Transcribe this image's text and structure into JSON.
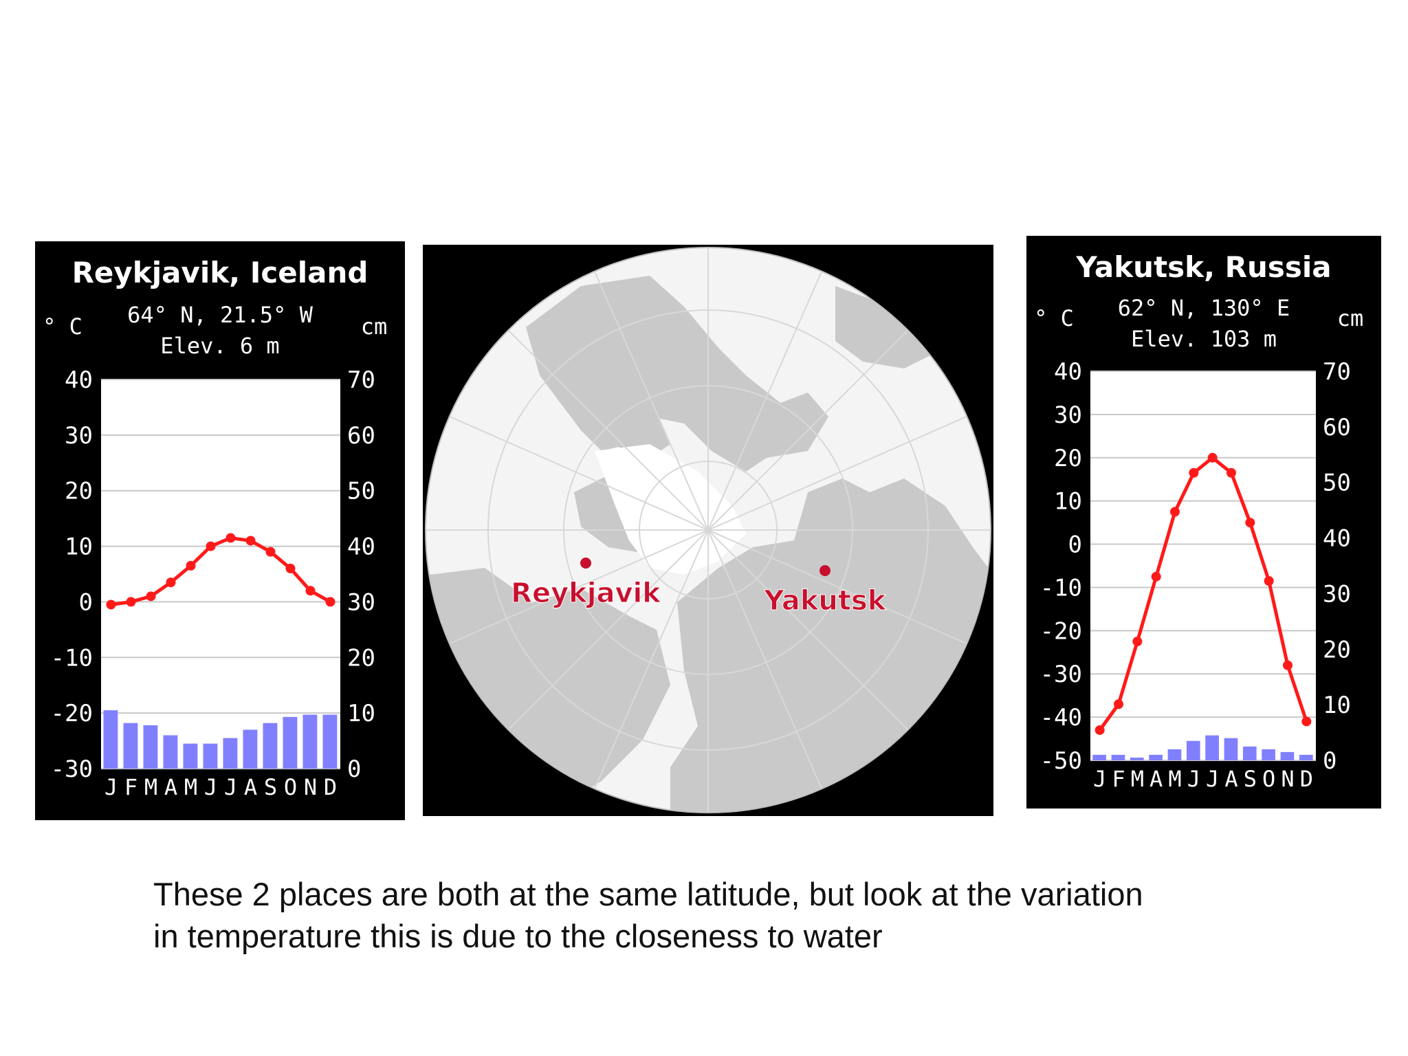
{
  "colors": {
    "panel_bg": "#000000",
    "plot_bg": "#ffffff",
    "grid": "#c8c8c8",
    "temperature": "#ff1a1a",
    "precipitation": "#8080ff",
    "label": "#ffffff",
    "land": "#c9c9c9",
    "ocean": "#f4f4f4",
    "city": "#c8102e"
  },
  "chart_data": [
    {
      "type": "bar",
      "title": "Reykjavik, Iceland",
      "subtitle": [
        "64° N, 21.5° W",
        "Elev. 6 m"
      ],
      "left_unit": "° C",
      "right_unit": "cm",
      "categories": [
        "J",
        "F",
        "M",
        "A",
        "M",
        "J",
        "J",
        "A",
        "S",
        "O",
        "N",
        "D"
      ],
      "temp_ylim": [
        -30,
        40
      ],
      "temp_ticks": [
        "40",
        "30",
        "20",
        "10",
        "0",
        "-10",
        "-20",
        "-30"
      ],
      "precip_ylim": [
        0,
        70
      ],
      "precip_ticks": [
        "70",
        "60",
        "50",
        "40",
        "30",
        "20",
        "10",
        "0"
      ],
      "grid": true,
      "series": [
        {
          "kind": "line",
          "axis": "temperature",
          "values": [
            -0.5,
            0,
            1,
            3.5,
            6.5,
            10,
            11.5,
            11,
            9,
            6,
            2,
            0
          ]
        },
        {
          "kind": "bar",
          "axis": "precipitation",
          "values": [
            10.5,
            8.2,
            7.8,
            6,
            4.5,
            4.5,
            5.5,
            7,
            8.2,
            9.3,
            9.7,
            9.7
          ]
        }
      ]
    },
    {
      "type": "bar",
      "title": "Yakutsk, Russia",
      "subtitle": [
        "62° N, 130° E",
        "Elev. 103 m"
      ],
      "left_unit": "° C",
      "right_unit": "cm",
      "categories": [
        "J",
        "F",
        "M",
        "A",
        "M",
        "J",
        "J",
        "A",
        "S",
        "O",
        "N",
        "D"
      ],
      "temp_ylim": [
        -50,
        40
      ],
      "temp_ticks": [
        "40",
        "30",
        "20",
        "10",
        "0",
        "-10",
        "-20",
        "-30",
        "-40",
        "-50"
      ],
      "precip_ylim": [
        0,
        70
      ],
      "precip_ticks": [
        "70",
        "60",
        "50",
        "40",
        "30",
        "20",
        "10",
        "0"
      ],
      "grid": true,
      "series": [
        {
          "kind": "line",
          "axis": "temperature",
          "values": [
            -43,
            -37,
            -22.5,
            -7.5,
            7.5,
            16.5,
            20,
            16.5,
            5,
            -8.5,
            -28,
            -41
          ]
        },
        {
          "kind": "bar",
          "axis": "precipitation",
          "values": [
            1,
            1,
            0.5,
            1,
            2,
            3.5,
            4.5,
            4,
            2.5,
            2,
            1.5,
            1
          ]
        }
      ]
    }
  ],
  "map": {
    "labels": [
      {
        "text": "Reykjavik"
      },
      {
        "text": "Yakutsk"
      }
    ]
  },
  "caption": {
    "line1": "These 2 places are both at the same latitude, but look at the variation",
    "line2": "in temperature this is due to the closeness to water"
  }
}
